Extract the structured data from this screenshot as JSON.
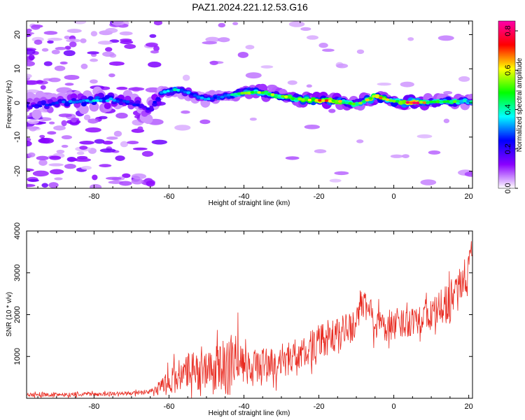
{
  "title": "PAZ1.2024.221.12.53.G16",
  "chart_data": [
    {
      "type": "heatmap",
      "xlabel": "Height of straight line (km)",
      "ylabel": "Frequency (Hz)",
      "xlim": [
        -98,
        21
      ],
      "ylim": [
        -25,
        24
      ],
      "xticks": [
        -80,
        -60,
        -40,
        -20,
        0,
        20
      ],
      "yticks": [
        -20,
        -10,
        0,
        10,
        20
      ],
      "colorbar": {
        "label": "Normalized spectral amplitude",
        "range": [
          0,
          0.85
        ],
        "ticks": [
          "0.0",
          "0.2",
          "0.4",
          "0.6",
          "0.8"
        ],
        "colors": [
          "#ffffff",
          "#8a00ff",
          "#0000ff",
          "#00ffff",
          "#00ff00",
          "#ffff00",
          "#ff0000",
          "#ff00aa"
        ]
      },
      "ridge": {
        "x": [
          -97,
          -90,
          -85,
          -80,
          -75,
          -70,
          -65,
          -62,
          -58,
          -55,
          -50,
          -45,
          -40,
          -35,
          -30,
          -25,
          -20,
          -15,
          -10,
          -5,
          0,
          5,
          10,
          15,
          20
        ],
        "freq": [
          -1,
          0,
          0.5,
          0.5,
          1,
          0,
          -2,
          3,
          4,
          3,
          1,
          2,
          3,
          3,
          2,
          1,
          0.8,
          0.5,
          -0.5,
          2,
          0.5,
          0,
          0.3,
          0.5,
          0.5
        ],
        "amp": [
          0.2,
          0.25,
          0.3,
          0.35,
          0.3,
          0.25,
          0.2,
          0.3,
          0.4,
          0.3,
          0.3,
          0.35,
          0.5,
          0.55,
          0.5,
          0.55,
          0.65,
          0.6,
          0.45,
          0.7,
          0.5,
          0.85,
          0.45,
          0.5,
          0.4
        ]
      }
    },
    {
      "type": "line",
      "xlabel": "Height of straight line (km)",
      "ylabel": "SNR (10 * v/v)",
      "xlim": [
        -98,
        21
      ],
      "ylim": [
        0,
        4000
      ],
      "xticks": [
        -80,
        -60,
        -40,
        -20,
        0,
        20
      ],
      "yticks": [
        1000,
        2000,
        3000,
        4000
      ],
      "color": "#e8291f",
      "envelope": {
        "x": [
          -98,
          -90,
          -80,
          -70,
          -65,
          -62,
          -60,
          -55,
          -50,
          -45,
          -42,
          -40,
          -35,
          -30,
          -25,
          -20,
          -15,
          -10,
          -8,
          -5,
          0,
          5,
          10,
          15,
          18,
          20,
          21
        ],
        "base": [
          80,
          90,
          100,
          120,
          150,
          250,
          450,
          600,
          700,
          700,
          800,
          750,
          800,
          900,
          1050,
          1300,
          1500,
          1800,
          2300,
          1800,
          1700,
          1900,
          2000,
          2300,
          2600,
          3200,
          3400
        ],
        "amp": [
          60,
          60,
          60,
          60,
          80,
          250,
          400,
          600,
          600,
          800,
          1000,
          500,
          500,
          500,
          500,
          600,
          500,
          500,
          600,
          500,
          400,
          500,
          500,
          600,
          700,
          600,
          300
        ]
      }
    }
  ]
}
